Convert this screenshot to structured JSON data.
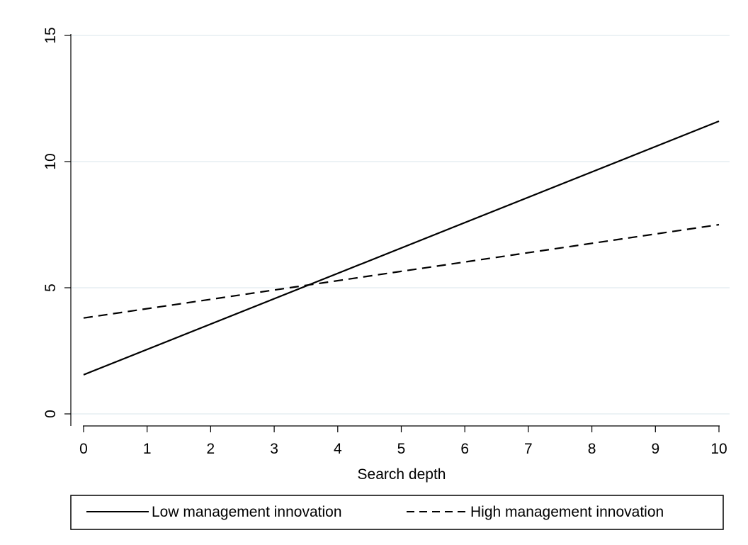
{
  "chart_data": {
    "type": "line",
    "title": "",
    "xlabel": "Search depth",
    "ylabel": "",
    "xlim": [
      0,
      10
    ],
    "ylim": [
      0,
      15
    ],
    "xticks": [
      0,
      1,
      2,
      3,
      4,
      5,
      6,
      7,
      8,
      9,
      10
    ],
    "yticks": [
      0,
      5,
      10,
      15
    ],
    "grid": "horizontal",
    "legend_position": "bottom",
    "series": [
      {
        "name": "Low management innovation",
        "style": "solid",
        "color": "#000000",
        "x": [
          0,
          10
        ],
        "y": [
          1.55,
          11.6
        ]
      },
      {
        "name": "High management innovation",
        "style": "dashed",
        "color": "#000000",
        "x": [
          0,
          10
        ],
        "y": [
          3.8,
          7.5
        ]
      }
    ]
  }
}
